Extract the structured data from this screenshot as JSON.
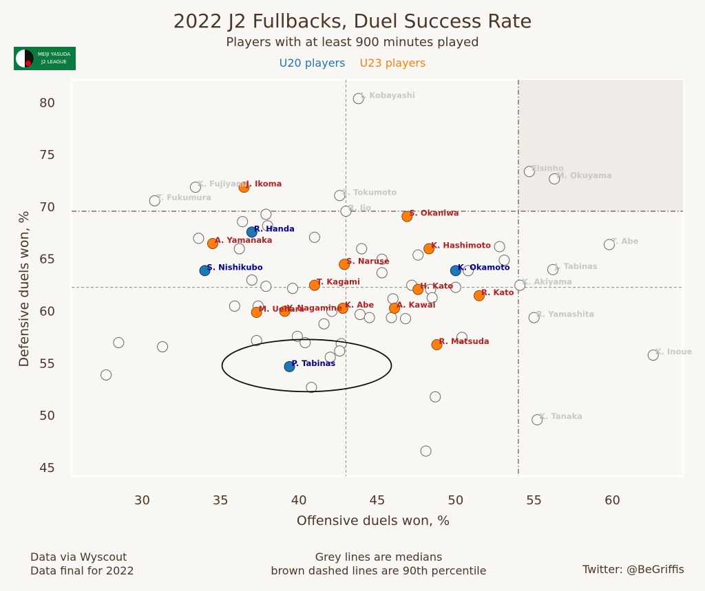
{
  "colors": {
    "u20": "#1f77b4",
    "u23": "#ff7f0e",
    "u20_label": "#00008b",
    "u23_label": "#b22222",
    "grey_label": "#c8c8c8",
    "brown": "#6b4f43",
    "text": "#4a3728",
    "logo_green": "#0b7a3e"
  },
  "logo": {
    "line1": "MEIJI YASUDA",
    "line2": "J2 LEAGUE"
  },
  "footer": {
    "left_line1": "Data via Wyscout",
    "left_line2": "Data final for 2022",
    "center_line1": "Grey lines are medians",
    "center_line2": "brown dashed lines are 90th percentile",
    "right": "Twitter: @BeGriffis"
  },
  "chart_data": {
    "type": "scatter",
    "title": "2022 J2 Fullbacks, Duel Success Rate",
    "subtitle": "Players with at least 900 minutes played",
    "legend": [
      {
        "label": "U20 players",
        "color": "#1f77b4"
      },
      {
        "label": "U23 players",
        "color": "#ff7f0e"
      }
    ],
    "xlabel": "Offensive duels won, %",
    "ylabel": "Defensive duels won, %",
    "xlim": [
      25.5,
      64.5
    ],
    "ylim": [
      44.2,
      82.2
    ],
    "xticks": [
      30,
      35,
      40,
      45,
      50,
      55,
      60
    ],
    "yticks": [
      45,
      50,
      55,
      60,
      65,
      70,
      75,
      80
    ],
    "median_x": 43.0,
    "median_y": 62.3,
    "p90_x": 54.0,
    "p90_y": 69.6,
    "highlight_region": {
      "x_from": 54.0,
      "y_from": 69.6
    },
    "annotation_ellipse": {
      "cx": 40.5,
      "cy": 54.8,
      "rx": 5.4,
      "ry": 2.5,
      "label_player": "P. Tabinas"
    },
    "points": [
      {
        "label": "I. Kobayashi",
        "x": 43.8,
        "y": 80.4,
        "group": "other"
      },
      {
        "label": "Elsinho",
        "x": 54.7,
        "y": 73.4,
        "group": "other"
      },
      {
        "label": "M. Okuyama",
        "x": 56.3,
        "y": 72.7,
        "group": "other"
      },
      {
        "label": "K. Fujiyama",
        "x": 33.4,
        "y": 71.9,
        "group": "other"
      },
      {
        "label": "J. Ikoma",
        "x": 36.5,
        "y": 71.9,
        "group": "u23"
      },
      {
        "label": "S. Tokumoto",
        "x": 42.6,
        "y": 71.1,
        "group": "other"
      },
      {
        "label": "T. Fukumura",
        "x": 30.8,
        "y": 70.6,
        "group": "other"
      },
      {
        "label": "R. Iio",
        "x": 43.0,
        "y": 69.6,
        "group": "other"
      },
      {
        "label": "S. Okaniwa",
        "x": 46.9,
        "y": 69.1,
        "group": "u23"
      },
      {
        "label": "R. Handa",
        "x": 37.0,
        "y": 67.6,
        "group": "u20"
      },
      {
        "label": "A. Yamanaka",
        "x": 34.5,
        "y": 66.5,
        "group": "u23"
      },
      {
        "label": "T. Abe",
        "x": 59.8,
        "y": 66.4,
        "group": "other"
      },
      {
        "label": "K. Hashimoto",
        "x": 48.3,
        "y": 66.0,
        "group": "u23"
      },
      {
        "label": "S. Naruse",
        "x": 42.9,
        "y": 64.5,
        "group": "u23"
      },
      {
        "label": "S. Nishikubo",
        "x": 34.0,
        "y": 63.9,
        "group": "u20"
      },
      {
        "label": "K. Okamoto",
        "x": 50.0,
        "y": 63.9,
        "group": "u20"
      },
      {
        "label": "J. Tabinas",
        "x": 56.2,
        "y": 64.0,
        "group": "other"
      },
      {
        "label": "T. Kagami",
        "x": 41.0,
        "y": 62.5,
        "group": "u23"
      },
      {
        "label": "K. Akiyama",
        "x": 54.1,
        "y": 62.5,
        "group": "other"
      },
      {
        "label": "H. Kato",
        "x": 47.6,
        "y": 62.1,
        "group": "u23"
      },
      {
        "label": "R. Kato",
        "x": 51.5,
        "y": 61.5,
        "group": "u23"
      },
      {
        "label": "K. Abe",
        "x": 42.8,
        "y": 60.3,
        "group": "u23"
      },
      {
        "label": "A. Kawai",
        "x": 46.1,
        "y": 60.3,
        "group": "u23"
      },
      {
        "label": "Y. Nagamine",
        "x": 39.1,
        "y": 60.0,
        "group": "u23"
      },
      {
        "label": "M. Uehara",
        "x": 37.3,
        "y": 59.9,
        "group": "u23"
      },
      {
        "label": "R. Yamashita",
        "x": 55.0,
        "y": 59.4,
        "group": "other"
      },
      {
        "label": "R. Matsuda",
        "x": 48.8,
        "y": 56.8,
        "group": "u23"
      },
      {
        "label": "K. Inoue",
        "x": 62.6,
        "y": 55.8,
        "group": "other"
      },
      {
        "label": "P. Tabinas",
        "x": 39.4,
        "y": 54.7,
        "group": "u20"
      },
      {
        "label": "K. Tanaka",
        "x": 55.2,
        "y": 49.6,
        "group": "other"
      },
      {
        "label": "",
        "x": 36.4,
        "y": 68.6,
        "group": "other"
      },
      {
        "label": "",
        "x": 37.9,
        "y": 69.3,
        "group": "other"
      },
      {
        "label": "",
        "x": 38.0,
        "y": 68.2,
        "group": "other"
      },
      {
        "label": "",
        "x": 33.6,
        "y": 67.0,
        "group": "other"
      },
      {
        "label": "",
        "x": 41.0,
        "y": 67.1,
        "group": "other"
      },
      {
        "label": "",
        "x": 36.2,
        "y": 66.0,
        "group": "other"
      },
      {
        "label": "",
        "x": 44.0,
        "y": 66.0,
        "group": "other"
      },
      {
        "label": "",
        "x": 52.8,
        "y": 66.2,
        "group": "other"
      },
      {
        "label": "",
        "x": 47.6,
        "y": 65.4,
        "group": "other"
      },
      {
        "label": "",
        "x": 45.3,
        "y": 65.0,
        "group": "other"
      },
      {
        "label": "",
        "x": 53.1,
        "y": 64.9,
        "group": "other"
      },
      {
        "label": "",
        "x": 45.3,
        "y": 63.7,
        "group": "other"
      },
      {
        "label": "",
        "x": 50.8,
        "y": 63.9,
        "group": "other"
      },
      {
        "label": "",
        "x": 37.0,
        "y": 63.0,
        "group": "other"
      },
      {
        "label": "",
        "x": 37.9,
        "y": 62.4,
        "group": "other"
      },
      {
        "label": "",
        "x": 39.6,
        "y": 62.2,
        "group": "other"
      },
      {
        "label": "",
        "x": 47.2,
        "y": 62.5,
        "group": "other"
      },
      {
        "label": "",
        "x": 48.4,
        "y": 62.1,
        "group": "other"
      },
      {
        "label": "",
        "x": 50.0,
        "y": 62.3,
        "group": "other"
      },
      {
        "label": "",
        "x": 46.0,
        "y": 61.2,
        "group": "other"
      },
      {
        "label": "",
        "x": 48.5,
        "y": 61.3,
        "group": "other"
      },
      {
        "label": "",
        "x": 35.9,
        "y": 60.5,
        "group": "other"
      },
      {
        "label": "",
        "x": 37.4,
        "y": 60.5,
        "group": "other"
      },
      {
        "label": "",
        "x": 42.1,
        "y": 60.0,
        "group": "other"
      },
      {
        "label": "",
        "x": 43.9,
        "y": 59.7,
        "group": "other"
      },
      {
        "label": "",
        "x": 44.5,
        "y": 59.4,
        "group": "other"
      },
      {
        "label": "",
        "x": 45.9,
        "y": 59.4,
        "group": "other"
      },
      {
        "label": "",
        "x": 46.8,
        "y": 59.3,
        "group": "other"
      },
      {
        "label": "",
        "x": 41.6,
        "y": 58.8,
        "group": "other"
      },
      {
        "label": "",
        "x": 39.9,
        "y": 57.6,
        "group": "other"
      },
      {
        "label": "",
        "x": 40.4,
        "y": 57.0,
        "group": "other"
      },
      {
        "label": "",
        "x": 50.4,
        "y": 57.5,
        "group": "other"
      },
      {
        "label": "",
        "x": 37.3,
        "y": 57.2,
        "group": "other"
      },
      {
        "label": "",
        "x": 28.5,
        "y": 57.0,
        "group": "other"
      },
      {
        "label": "",
        "x": 31.3,
        "y": 56.6,
        "group": "other"
      },
      {
        "label": "",
        "x": 42.7,
        "y": 56.9,
        "group": "other"
      },
      {
        "label": "",
        "x": 42.6,
        "y": 56.2,
        "group": "other"
      },
      {
        "label": "",
        "x": 42.0,
        "y": 55.6,
        "group": "other"
      },
      {
        "label": "",
        "x": 27.7,
        "y": 53.9,
        "group": "other"
      },
      {
        "label": "",
        "x": 40.8,
        "y": 52.7,
        "group": "other"
      },
      {
        "label": "",
        "x": 48.7,
        "y": 51.8,
        "group": "other"
      },
      {
        "label": "",
        "x": 48.1,
        "y": 46.6,
        "group": "other"
      }
    ]
  }
}
